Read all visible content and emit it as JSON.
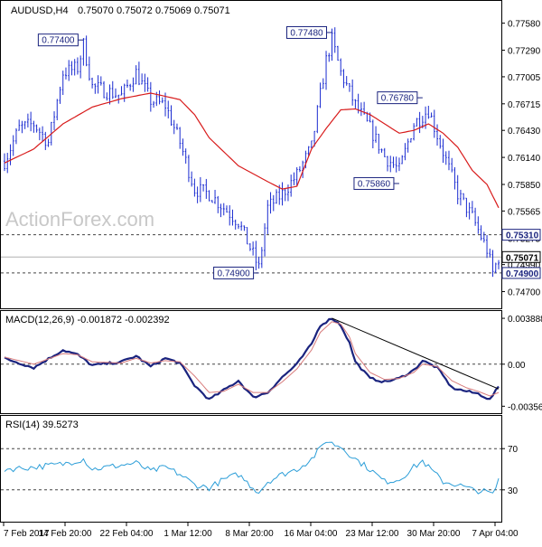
{
  "header": {
    "symbol": "AUDUSD,H4",
    "o": "0.75070",
    "h": "0.75072",
    "l": "0.75069",
    "c": "0.75071"
  },
  "watermark": "ActionForex.com",
  "colors": {
    "bull": "#1a2bd0",
    "bear": "#1a2bd0",
    "ma": "#d81b1b",
    "macd_line": "#1a237e",
    "macd_signal": "#d87c7c",
    "rsi_line": "#2c9ed8",
    "level_tag": "#1a237e",
    "grid_dash": "#444444",
    "axis_text": "#000000",
    "trendline": "#000000",
    "watermark": "#c8c8c8"
  },
  "chart_data": [
    {
      "type": "candlestick",
      "panel": "price",
      "ylim": [
        0.7455,
        0.7779
      ],
      "yticks": [
        "0.77580",
        "0.77290",
        "0.77005",
        "0.76715",
        "0.76430",
        "0.76140",
        "0.75850",
        "0.75565",
        "0.75275",
        "0.74990",
        "0.74700"
      ],
      "yticks_values": [
        0.7758,
        0.7729,
        0.77005,
        0.76715,
        0.7643,
        0.7614,
        0.7585,
        0.75565,
        0.75275,
        0.7499,
        0.747
      ],
      "x_labels": [
        "7 Feb 2017",
        "14 Feb 20:00",
        "22 Feb 04:00",
        "1 Mar 12:00",
        "8 Mar 20:00",
        "16 Mar 04:00",
        "23 Mar 12:00",
        "30 Mar 20:00",
        "7 Apr 04:00"
      ],
      "annotations": [
        {
          "label": "0.77400",
          "bar": 27,
          "value": 0.774
        },
        {
          "label": "0.77480",
          "bar": 112,
          "value": 0.7748
        },
        {
          "label": "0.76780",
          "bar": 143,
          "value": 0.7678
        },
        {
          "label": "0.75860",
          "bar": 135,
          "value": 0.7586
        },
        {
          "label": "0.74900",
          "bar": 87,
          "value": 0.749
        }
      ],
      "levels": [
        {
          "label": "0.75310",
          "value": 0.7531
        },
        {
          "label": "0.74900",
          "value": 0.749
        }
      ],
      "current_price": {
        "label": "0.75071",
        "value": 0.75071
      },
      "ma_key": [
        [
          0,
          0.7608
        ],
        [
          10,
          0.7623
        ],
        [
          20,
          0.765
        ],
        [
          30,
          0.7668
        ],
        [
          40,
          0.7677
        ],
        [
          50,
          0.7683
        ],
        [
          60,
          0.7676
        ],
        [
          65,
          0.766
        ],
        [
          70,
          0.7635
        ],
        [
          75,
          0.762
        ],
        [
          80,
          0.7605
        ],
        [
          90,
          0.7588
        ],
        [
          95,
          0.758
        ],
        [
          100,
          0.7583
        ],
        [
          105,
          0.7623
        ],
        [
          110,
          0.7645
        ],
        [
          115,
          0.7665
        ],
        [
          120,
          0.7666
        ],
        [
          125,
          0.766
        ],
        [
          130,
          0.765
        ],
        [
          135,
          0.764
        ],
        [
          140,
          0.7643
        ],
        [
          145,
          0.765
        ],
        [
          150,
          0.764
        ],
        [
          155,
          0.7625
        ],
        [
          160,
          0.76
        ],
        [
          165,
          0.7585
        ],
        [
          169,
          0.756
        ]
      ],
      "price_key": [
        [
          0,
          0.761
        ],
        [
          5,
          0.7645
        ],
        [
          10,
          0.765
        ],
        [
          15,
          0.763
        ],
        [
          20,
          0.7705
        ],
        [
          25,
          0.771
        ],
        [
          27,
          0.7735
        ],
        [
          30,
          0.769
        ],
        [
          35,
          0.7685
        ],
        [
          40,
          0.768
        ],
        [
          45,
          0.7705
        ],
        [
          50,
          0.7675
        ],
        [
          55,
          0.767
        ],
        [
          60,
          0.763
        ],
        [
          65,
          0.758
        ],
        [
          70,
          0.7575
        ],
        [
          75,
          0.756
        ],
        [
          80,
          0.7545
        ],
        [
          85,
          0.751
        ],
        [
          87,
          0.7495
        ],
        [
          90,
          0.756
        ],
        [
          95,
          0.7575
        ],
        [
          100,
          0.7595
        ],
        [
          105,
          0.7625
        ],
        [
          110,
          0.7718
        ],
        [
          112,
          0.774
        ],
        [
          115,
          0.7705
        ],
        [
          120,
          0.767
        ],
        [
          125,
          0.7645
        ],
        [
          130,
          0.7615
        ],
        [
          135,
          0.76
        ],
        [
          140,
          0.765
        ],
        [
          145,
          0.7665
        ],
        [
          150,
          0.762
        ],
        [
          155,
          0.7575
        ],
        [
          160,
          0.755
        ],
        [
          165,
          0.7515
        ],
        [
          167,
          0.749
        ],
        [
          169,
          0.7507
        ]
      ]
    },
    {
      "type": "line",
      "panel": "macd",
      "title": "MACD(12,26,9) -0.001872 -0.002392",
      "ylim": [
        -0.004,
        0.0042
      ],
      "yticks": [
        "0.003888",
        "0.00",
        "-0.003564"
      ],
      "yticks_values": [
        0.003888,
        0.0,
        -0.003564
      ],
      "series": [
        {
          "name": "MACD",
          "key": [
            [
              0,
              0.0005
            ],
            [
              10,
              -0.0003
            ],
            [
              20,
              0.0012
            ],
            [
              25,
              0.0008
            ],
            [
              30,
              -0.0001
            ],
            [
              40,
              0.0002
            ],
            [
              45,
              0.0007
            ],
            [
              50,
              -0.0002
            ],
            [
              55,
              0.0005
            ],
            [
              60,
              0.0001
            ],
            [
              65,
              -0.0018
            ],
            [
              70,
              -0.003
            ],
            [
              75,
              -0.0022
            ],
            [
              80,
              -0.0014
            ],
            [
              85,
              -0.0028
            ],
            [
              90,
              -0.0024
            ],
            [
              95,
              -0.0011
            ],
            [
              100,
              0.0
            ],
            [
              105,
              0.0017
            ],
            [
              108,
              0.0033
            ],
            [
              112,
              0.0039
            ],
            [
              115,
              0.0033
            ],
            [
              118,
              0.0018
            ],
            [
              120,
              0.0002
            ],
            [
              125,
              -0.0012
            ],
            [
              130,
              -0.0015
            ],
            [
              135,
              -0.0012
            ],
            [
              140,
              -0.0005
            ],
            [
              143,
              0.0003
            ],
            [
              148,
              -0.0003
            ],
            [
              153,
              -0.002
            ],
            [
              158,
              -0.0023
            ],
            [
              162,
              -0.0025
            ],
            [
              166,
              -0.003
            ],
            [
              169,
              -0.0019
            ]
          ]
        },
        {
          "name": "Signal",
          "key": [
            [
              0,
              0.0006
            ],
            [
              10,
              0.0
            ],
            [
              20,
              0.0009
            ],
            [
              25,
              0.0008
            ],
            [
              30,
              0.0002
            ],
            [
              40,
              0.0001
            ],
            [
              45,
              0.0005
            ],
            [
              50,
              0.0001
            ],
            [
              55,
              0.0003
            ],
            [
              60,
              0.0002
            ],
            [
              65,
              -0.001
            ],
            [
              70,
              -0.0024
            ],
            [
              75,
              -0.0023
            ],
            [
              80,
              -0.0017
            ],
            [
              85,
              -0.0024
            ],
            [
              90,
              -0.0024
            ],
            [
              95,
              -0.0015
            ],
            [
              100,
              -0.0004
            ],
            [
              105,
              0.0012
            ],
            [
              108,
              0.0027
            ],
            [
              112,
              0.0036
            ],
            [
              115,
              0.0034
            ],
            [
              118,
              0.0023
            ],
            [
              120,
              0.0009
            ],
            [
              125,
              -0.0007
            ],
            [
              130,
              -0.0013
            ],
            [
              135,
              -0.0012
            ],
            [
              140,
              -0.0007
            ],
            [
              143,
              0.0
            ],
            [
              148,
              -0.0002
            ],
            [
              153,
              -0.0014
            ],
            [
              158,
              -0.002
            ],
            [
              162,
              -0.0023
            ],
            [
              166,
              -0.0027
            ],
            [
              169,
              -0.0024
            ]
          ]
        }
      ],
      "trendline": [
        [
          112,
          0.0039
        ],
        [
          169,
          -0.0021
        ]
      ]
    },
    {
      "type": "line",
      "panel": "rsi",
      "title": "RSI(14) 39.5273",
      "ylim": [
        0,
        100
      ],
      "yticks": [
        "70",
        "30"
      ],
      "yticks_values": [
        70,
        30
      ],
      "series": [
        {
          "name": "RSI",
          "key": [
            [
              0,
              50
            ],
            [
              10,
              52
            ],
            [
              20,
              55
            ],
            [
              27,
              60
            ],
            [
              30,
              50
            ],
            [
              40,
              54
            ],
            [
              45,
              56
            ],
            [
              50,
              48
            ],
            [
              55,
              52
            ],
            [
              60,
              45
            ],
            [
              65,
              35
            ],
            [
              70,
              32
            ],
            [
              75,
              40
            ],
            [
              80,
              45
            ],
            [
              85,
              32
            ],
            [
              87,
              28
            ],
            [
              90,
              38
            ],
            [
              95,
              45
            ],
            [
              100,
              50
            ],
            [
              105,
              60
            ],
            [
              108,
              70
            ],
            [
              110,
              78
            ],
            [
              112,
              75
            ],
            [
              115,
              72
            ],
            [
              120,
              60
            ],
            [
              125,
              50
            ],
            [
              130,
              38
            ],
            [
              135,
              40
            ],
            [
              140,
              52
            ],
            [
              143,
              58
            ],
            [
              145,
              52
            ],
            [
              150,
              38
            ],
            [
              155,
              35
            ],
            [
              160,
              30
            ],
            [
              165,
              28
            ],
            [
              167,
              25
            ],
            [
              169,
              39.5
            ]
          ]
        }
      ]
    }
  ]
}
